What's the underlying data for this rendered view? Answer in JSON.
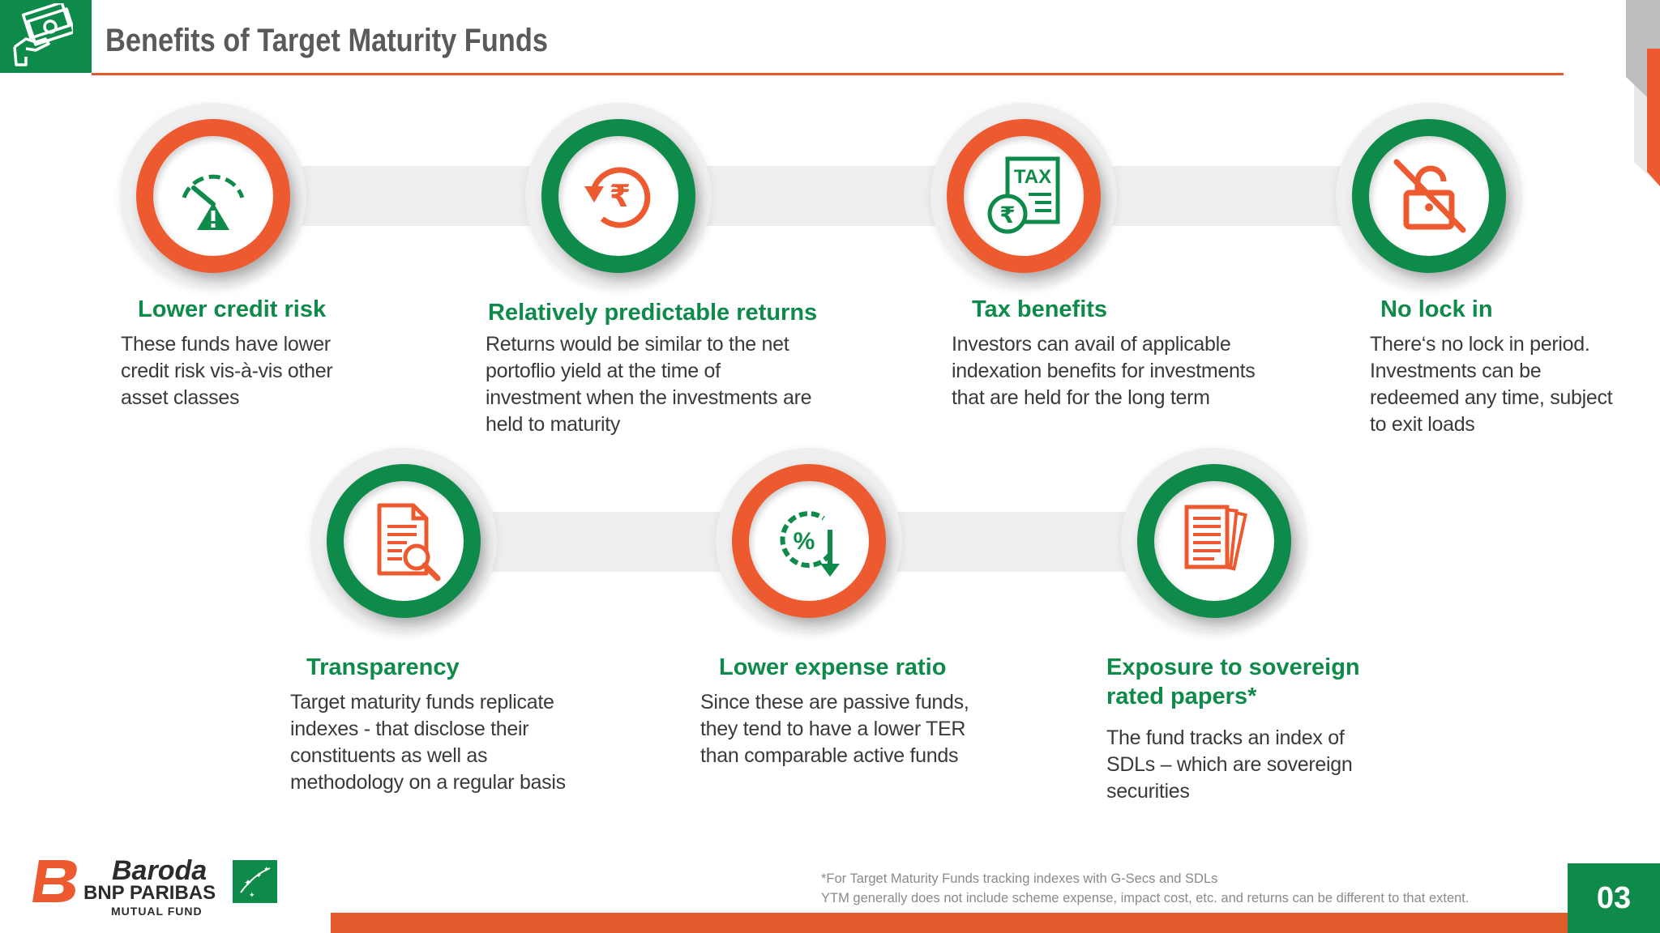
{
  "header": {
    "title": "Benefits of Target Maturity Funds"
  },
  "benefits": [
    {
      "title": "Lower credit risk",
      "description_lines": [
        "These funds have lower",
        "credit risk vis-à-vis other",
        "asset classes"
      ],
      "icon": "credit-risk-gauge-icon",
      "ring_color": "#ee5a2f"
    },
    {
      "title": "Relatively predictable returns",
      "description_lines": [
        "Returns would be similar to the net",
        "portoflio yield at the time of",
        "investment when the investments are",
        "held to maturity"
      ],
      "icon": "rupee-refresh-icon",
      "ring_color": "#0e8a4a"
    },
    {
      "title": "Tax benefits",
      "description_lines": [
        "Investors can avail of applicable",
        "indexation benefits for investments",
        "that are held for the long term"
      ],
      "icon": "tax-document-icon",
      "ring_color": "#ee5a2f"
    },
    {
      "title": "No lock in",
      "description_lines": [
        "There‘s no lock in period.",
        "Investments can be",
        "redeemed any time, subject",
        "to exit loads"
      ],
      "icon": "unlock-icon",
      "ring_color": "#0e8a4a"
    },
    {
      "title": "Transparency",
      "description_lines": [
        "Target maturity funds  replicate",
        "indexes -  that disclose their",
        "constituents as well as",
        "methodology on a regular basis"
      ],
      "icon": "document-search-icon",
      "ring_color": "#0e8a4a"
    },
    {
      "title": "Lower expense ratio",
      "description_lines": [
        "Since these are passive funds,",
        "they tend to have a lower TER",
        "than comparable active funds"
      ],
      "icon": "percent-down-icon",
      "ring_color": "#ee5a2f"
    },
    {
      "title_lines": [
        "Exposure to sovereign",
        "rated papers*"
      ],
      "description_lines": [
        "The fund tracks an index of",
        "SDLs – which are sovereign",
        "securities"
      ],
      "icon": "stacked-papers-icon",
      "ring_color": "#0e8a4a"
    }
  ],
  "footer": {
    "footnote_lines": [
      "*For Target Maturity Funds tracking indexes with G-Secs and SDLs",
      "YTM generally does not include scheme expense, impact cost, etc. and returns can be different to that extent."
    ],
    "page_number": "03",
    "logo": {
      "line1": "Baroda",
      "line2": "BNP PARIBAS",
      "line3": "MUTUAL FUND"
    }
  },
  "colors": {
    "green": "#0e8a4a",
    "orange": "#ee5a2f",
    "rule": "#e05a2b",
    "text": "#3a3a3a"
  }
}
